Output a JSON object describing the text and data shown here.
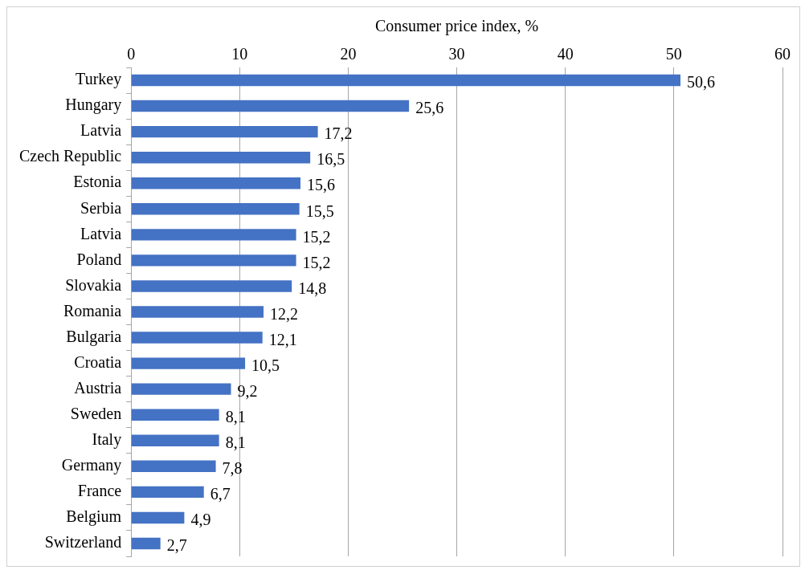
{
  "chart_data": {
    "type": "bar",
    "orientation": "horizontal",
    "xlabel": "Consumer price index, %",
    "categories": [
      "Turkey",
      "Hungary",
      "Latvia",
      "Czech Republic",
      "Estonia",
      "Serbia",
      "Latvia",
      "Poland",
      "Slovakia",
      "Romania",
      "Bulgaria",
      "Croatia",
      "Austria",
      "Sweden",
      "Italy",
      "Germany",
      "France",
      "Belgium",
      "Switzerland"
    ],
    "values": [
      50.6,
      25.6,
      17.2,
      16.5,
      15.6,
      15.5,
      15.2,
      15.2,
      14.8,
      12.2,
      12.1,
      10.5,
      9.2,
      8.1,
      8.1,
      7.8,
      6.7,
      4.9,
      2.7
    ],
    "value_labels": [
      "50,6",
      "25,6",
      "17,2",
      "16,5",
      "15,6",
      "15,5",
      "15,2",
      "15,2",
      "14,8",
      "12,2",
      "12,1",
      "10,5",
      "9,2",
      "8,1",
      "8,1",
      "7,8",
      "6,7",
      "4,9",
      "2,7"
    ],
    "color": "#4472c4",
    "xlim": [
      0,
      60
    ],
    "xticks": [
      0,
      10,
      20,
      30,
      40,
      50,
      60
    ],
    "grid": "x",
    "legend": false
  }
}
